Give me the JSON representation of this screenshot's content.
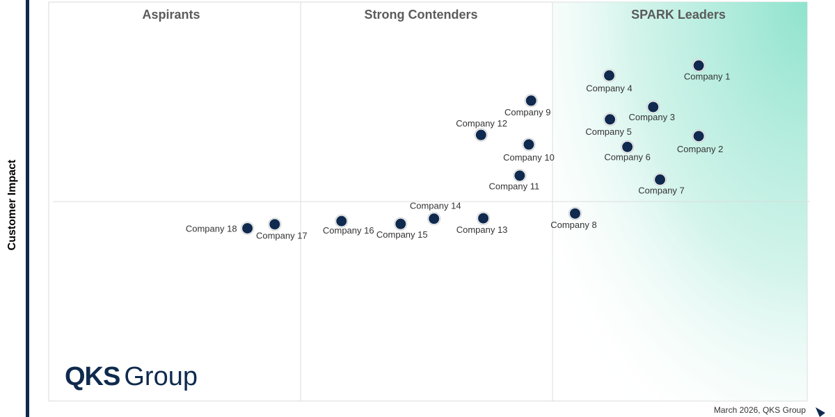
{
  "chart_data": {
    "type": "scatter",
    "title": "",
    "ylabel": "Customer Impact",
    "xlabel": "",
    "quadrants": [
      "Aspirants",
      "Strong Contenders",
      "SPARK Leaders"
    ],
    "points": [
      {
        "label": "Company 1",
        "x": 0.857,
        "y": 0.841
      },
      {
        "label": "Company 2",
        "x": 0.857,
        "y": 0.664
      },
      {
        "label": "Company 3",
        "x": 0.797,
        "y": 0.737
      },
      {
        "label": "Company 4",
        "x": 0.739,
        "y": 0.816
      },
      {
        "label": "Company 5",
        "x": 0.74,
        "y": 0.706
      },
      {
        "label": "Company 6",
        "x": 0.763,
        "y": 0.637
      },
      {
        "label": "Company 7",
        "x": 0.806,
        "y": 0.555
      },
      {
        "label": "Company 8",
        "x": 0.694,
        "y": 0.47
      },
      {
        "label": "Company 9",
        "x": 0.636,
        "y": 0.753
      },
      {
        "label": "Company 10",
        "x": 0.633,
        "y": 0.643
      },
      {
        "label": "Company 11",
        "x": 0.621,
        "y": 0.565
      },
      {
        "label": "Company 12",
        "x": 0.57,
        "y": 0.667
      },
      {
        "label": "Company 13",
        "x": 0.573,
        "y": 0.458
      },
      {
        "label": "Company 14",
        "x": 0.508,
        "y": 0.457
      },
      {
        "label": "Company 15",
        "x": 0.464,
        "y": 0.444
      },
      {
        "label": "Company 16",
        "x": 0.386,
        "y": 0.451
      },
      {
        "label": "Company 17",
        "x": 0.298,
        "y": 0.443
      },
      {
        "label": "Company 18",
        "x": 0.262,
        "y": 0.433
      }
    ],
    "xlim": [
      0,
      1
    ],
    "ylim": [
      0,
      1
    ],
    "grid": true,
    "legend": "none"
  },
  "logo": {
    "main": "QKS",
    "sub": "Group"
  },
  "footer": {
    "text": "March 2026, QKS Group"
  },
  "colors": {
    "point": "#0f2a4e",
    "leader_zone": "#9fe6d2",
    "axis_bar": "#0f2a4e"
  }
}
